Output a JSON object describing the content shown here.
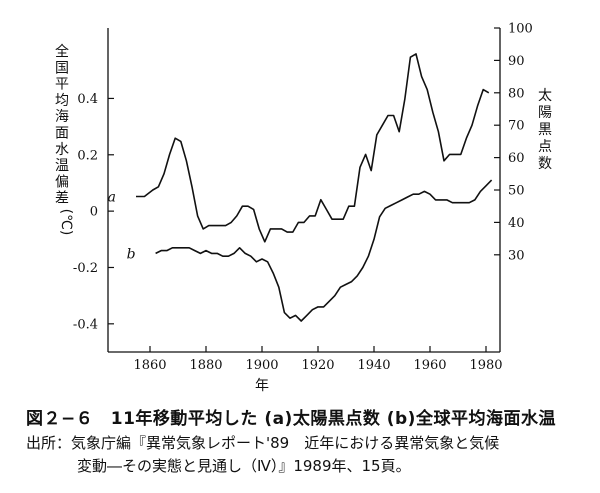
{
  "chart_data": {
    "type": "line",
    "xlabel": "年",
    "ylabel_left": "全国平均海面水温偏差",
    "ylabel_left_unit": "(℃)",
    "ylabel_right": "太陽黒点数",
    "x_ticks": [
      "1860",
      "1880",
      "1900",
      "1920",
      "1940",
      "1960",
      "1980"
    ],
    "y_left_ticks": [
      "0.4",
      "0.2",
      "0",
      "-0.2",
      "-0.4"
    ],
    "y_right_ticks": [
      "100",
      "90",
      "80",
      "70",
      "60",
      "50",
      "40",
      "30"
    ],
    "xlim": [
      1845,
      1985
    ],
    "ylim_left": [
      -0.5,
      0.65
    ],
    "ylim_right": [
      0,
      100
    ],
    "series": [
      {
        "name": "a",
        "axis": "right",
        "x": [
          1855,
          1858,
          1861,
          1863,
          1865,
          1867,
          1869,
          1871,
          1873,
          1875,
          1877,
          1879,
          1881,
          1883,
          1885,
          1887,
          1889,
          1891,
          1893,
          1895,
          1897,
          1899,
          1901,
          1903,
          1905,
          1907,
          1909,
          1911,
          1913,
          1915,
          1917,
          1919,
          1921,
          1923,
          1925,
          1927,
          1929,
          1931,
          1933,
          1935,
          1937,
          1939,
          1941,
          1943,
          1945,
          1947,
          1949,
          1951,
          1953,
          1955,
          1957,
          1959,
          1961,
          1963,
          1965,
          1967,
          1969,
          1971,
          1973,
          1975,
          1977,
          1979,
          1981
        ],
        "values": [
          48,
          48,
          50,
          51,
          55,
          61,
          66,
          65,
          59,
          51,
          42,
          38,
          39,
          39,
          39,
          39,
          40,
          42,
          45,
          45,
          44,
          38,
          34,
          38,
          38,
          38,
          37,
          37,
          40,
          40,
          42,
          42,
          47,
          44,
          41,
          41,
          41,
          45,
          45,
          57,
          61,
          56,
          67,
          70,
          73,
          73,
          68,
          78,
          91,
          92,
          85,
          81,
          74,
          68,
          59,
          61,
          61,
          61,
          66,
          70,
          76,
          81,
          80
        ]
      },
      {
        "name": "b",
        "axis": "left",
        "x": [
          1862,
          1864,
          1866,
          1868,
          1870,
          1872,
          1874,
          1876,
          1878,
          1880,
          1882,
          1884,
          1886,
          1888,
          1890,
          1892,
          1894,
          1896,
          1898,
          1900,
          1902,
          1904,
          1906,
          1908,
          1910,
          1912,
          1914,
          1916,
          1918,
          1920,
          1922,
          1924,
          1926,
          1928,
          1930,
          1932,
          1934,
          1936,
          1938,
          1940,
          1942,
          1944,
          1946,
          1948,
          1950,
          1952,
          1954,
          1956,
          1958,
          1960,
          1962,
          1964,
          1966,
          1968,
          1970,
          1972,
          1974,
          1976,
          1978,
          1980,
          1982
        ],
        "values": [
          -0.15,
          -0.14,
          -0.14,
          -0.13,
          -0.13,
          -0.13,
          -0.13,
          -0.14,
          -0.15,
          -0.14,
          -0.15,
          -0.15,
          -0.16,
          -0.16,
          -0.15,
          -0.13,
          -0.15,
          -0.16,
          -0.18,
          -0.17,
          -0.18,
          -0.22,
          -0.27,
          -0.36,
          -0.38,
          -0.37,
          -0.39,
          -0.37,
          -0.35,
          -0.34,
          -0.34,
          -0.32,
          -0.3,
          -0.27,
          -0.26,
          -0.25,
          -0.23,
          -0.2,
          -0.16,
          -0.1,
          -0.02,
          0.01,
          0.02,
          0.03,
          0.04,
          0.05,
          0.06,
          0.06,
          0.07,
          0.06,
          0.04,
          0.04,
          0.04,
          0.03,
          0.03,
          0.03,
          0.03,
          0.04,
          0.07,
          0.09,
          0.11
        ]
      }
    ]
  },
  "caption": "図２−６　11年移動平均した (a)太陽黒点数 (b)全球平均海面水温",
  "source_line1": "出所：気象庁編『異常気象レポート'89　近年における異常気象と気候",
  "source_line2": "変動―その実態と見通し（Ⅳ）』1989年、15頁。"
}
